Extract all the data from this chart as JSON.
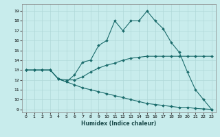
{
  "xlabel": "Humidex (Indice chaleur)",
  "background_color": "#c8ecec",
  "grid_color": "#b0d8d8",
  "line_color": "#1a6b6b",
  "xlim": [
    -0.5,
    23.5
  ],
  "ylim": [
    8.7,
    19.7
  ],
  "xticks": [
    0,
    1,
    2,
    3,
    4,
    5,
    6,
    7,
    8,
    9,
    10,
    11,
    12,
    13,
    14,
    15,
    16,
    17,
    18,
    19,
    20,
    21,
    22,
    23
  ],
  "yticks": [
    9,
    10,
    11,
    12,
    13,
    14,
    15,
    16,
    17,
    18,
    19
  ],
  "line1_x": [
    0,
    1,
    2,
    3,
    4,
    5,
    6,
    7,
    8,
    9,
    10,
    11,
    12,
    13,
    14,
    15,
    16,
    17,
    18,
    19,
    20,
    21,
    22,
    23
  ],
  "line1_y": [
    13,
    13,
    13,
    13,
    12.1,
    11.8,
    12.5,
    13.8,
    14.0,
    15.5,
    16.0,
    18.0,
    17.0,
    18.0,
    18.0,
    19.0,
    18.0,
    17.2,
    15.8,
    14.8,
    12.8,
    11.0,
    10.0,
    9.0
  ],
  "line2_x": [
    0,
    1,
    2,
    3,
    4,
    5,
    6,
    7,
    8,
    9,
    10,
    11,
    12,
    13,
    14,
    15,
    16,
    17,
    18,
    19,
    20,
    21,
    22,
    23
  ],
  "line2_y": [
    13,
    13,
    13,
    13,
    12.1,
    12.0,
    12.0,
    12.3,
    12.8,
    13.2,
    13.5,
    13.7,
    14.0,
    14.2,
    14.3,
    14.4,
    14.4,
    14.4,
    14.4,
    14.4,
    14.4,
    14.4,
    14.4,
    14.4
  ],
  "line3_x": [
    0,
    1,
    2,
    3,
    4,
    5,
    6,
    7,
    8,
    9,
    10,
    11,
    12,
    13,
    14,
    15,
    16,
    17,
    18,
    19,
    20,
    21,
    22,
    23
  ],
  "line3_y": [
    13,
    13,
    13,
    13,
    12.1,
    11.8,
    11.5,
    11.2,
    11.0,
    10.8,
    10.6,
    10.4,
    10.2,
    10.0,
    9.8,
    9.6,
    9.5,
    9.4,
    9.3,
    9.2,
    9.2,
    9.1,
    9.05,
    9.0
  ]
}
